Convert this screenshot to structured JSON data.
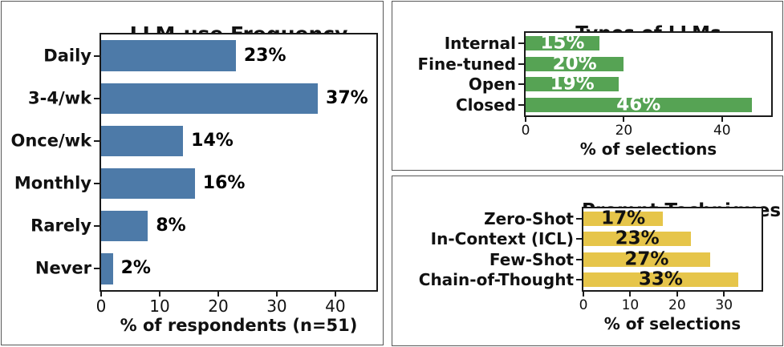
{
  "figure": {
    "background_color": "#ffffff",
    "panel_border_color": "#575757",
    "axis_color": "#1a1a1a",
    "text_color": "#111111"
  },
  "chart_data": [
    {
      "type": "bar",
      "orientation": "horizontal",
      "title": "LLM-use Frequency",
      "xlabel": "% of respondents (n=51)",
      "categories": [
        "Daily",
        "3-4/wk",
        "Once/wk",
        "Monthly",
        "Rarely",
        "Never"
      ],
      "values": [
        23,
        37,
        14,
        16,
        8,
        2
      ],
      "value_labels": [
        "23%",
        "37%",
        "14%",
        "16%",
        "8%",
        "2%"
      ],
      "xlim": [
        0,
        47
      ],
      "xticks": [
        0,
        10,
        20,
        30,
        40
      ],
      "bar_color": "#4d7aa8",
      "value_label_placement": "outside",
      "value_label_color": "#000000",
      "grid": false,
      "legend": null
    },
    {
      "type": "bar",
      "orientation": "horizontal",
      "title": "Types of LLMs",
      "xlabel": "% of selections",
      "categories": [
        "Internal",
        "Fine-tuned",
        "Open",
        "Closed"
      ],
      "values": [
        15,
        20,
        19,
        46
      ],
      "value_labels": [
        "15%",
        "20%",
        "19%",
        "46%"
      ],
      "xlim": [
        0,
        50
      ],
      "xticks": [
        0,
        20,
        40
      ],
      "bar_color": "#56a354",
      "value_label_placement": "inside",
      "value_label_color": "#ffffff",
      "grid": false,
      "legend": null
    },
    {
      "type": "bar",
      "orientation": "horizontal",
      "title": "Prompt Techniques",
      "xlabel": "% of selections",
      "categories": [
        "Zero-Shot",
        "In-Context (ICL)",
        "Few-Shot",
        "Chain-of-Thought"
      ],
      "values": [
        17,
        23,
        27,
        33
      ],
      "value_labels": [
        "17%",
        "23%",
        "27%",
        "33%"
      ],
      "xlim": [
        0,
        38
      ],
      "xticks": [
        0,
        10,
        20,
        30
      ],
      "bar_color": "#e6c54a",
      "value_label_placement": "inside",
      "value_label_color": "#111111",
      "grid": false,
      "legend": null
    }
  ]
}
